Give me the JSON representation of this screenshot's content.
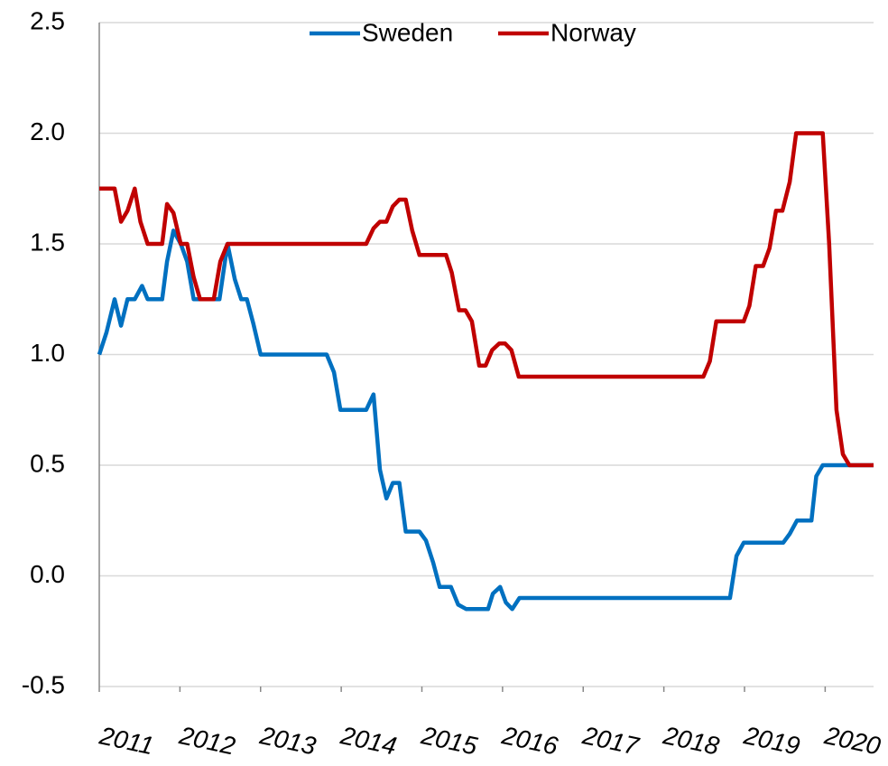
{
  "chart_data": {
    "type": "line",
    "xlim": [
      2011,
      2020.6
    ],
    "xticks": [
      2011,
      2012,
      2013,
      2014,
      2015,
      2016,
      2017,
      2018,
      2019,
      2020
    ],
    "ylim": [
      -0.5,
      2.5
    ],
    "yticks": [
      -0.5,
      {
        "value": 0,
        "label": "0.0"
      },
      0.5,
      {
        "value": 1,
        "label": "1.0"
      },
      1.5,
      {
        "value": 2,
        "label": "2.0"
      },
      2.5
    ],
    "grid": true,
    "legend": "top",
    "series": [
      {
        "name": "Sweden",
        "color": "#0070c0",
        "x": [
          2011.0,
          2011.09,
          2011.19,
          2011.27,
          2011.35,
          2011.44,
          2011.53,
          2011.6,
          2011.78,
          2011.84,
          2011.92,
          2012.01,
          2012.09,
          2012.17,
          2012.49,
          2012.59,
          2012.68,
          2012.76,
          2012.83,
          2012.91,
          2013.0,
          2013.82,
          2013.91,
          2013.99,
          2014.31,
          2014.4,
          2014.48,
          2014.56,
          2014.64,
          2014.72,
          2014.8,
          2014.97,
          2015.05,
          2015.14,
          2015.22,
          2015.36,
          2015.45,
          2015.55,
          2015.82,
          2015.88,
          2015.97,
          2016.04,
          2016.12,
          2016.21,
          2018.82,
          2018.9,
          2018.99,
          2019.48,
          2019.56,
          2019.65,
          2019.83,
          2019.89,
          2019.97,
          2020.6
        ],
        "values": [
          1.0,
          1.1,
          1.25,
          1.13,
          1.25,
          1.25,
          1.31,
          1.25,
          1.25,
          1.42,
          1.56,
          1.5,
          1.42,
          1.25,
          1.25,
          1.5,
          1.34,
          1.25,
          1.25,
          1.14,
          1.0,
          1.0,
          0.92,
          0.75,
          0.75,
          0.82,
          0.48,
          0.35,
          0.42,
          0.42,
          0.2,
          0.2,
          0.16,
          0.06,
          -0.05,
          -0.05,
          -0.13,
          -0.15,
          -0.15,
          -0.08,
          -0.05,
          -0.12,
          -0.15,
          -0.1,
          -0.1,
          0.09,
          0.15,
          0.15,
          0.19,
          0.25,
          0.25,
          0.45,
          0.5,
          0.5
        ]
      },
      {
        "name": "Norway",
        "color": "#c00000",
        "x": [
          2011.0,
          2011.19,
          2011.27,
          2011.35,
          2011.44,
          2011.51,
          2011.6,
          2011.78,
          2011.84,
          2011.92,
          2012.01,
          2012.09,
          2012.17,
          2012.25,
          2012.42,
          2012.5,
          2012.59,
          2014.31,
          2014.4,
          2014.48,
          2014.56,
          2014.64,
          2014.72,
          2014.8,
          2014.88,
          2014.97,
          2015.3,
          2015.37,
          2015.46,
          2015.54,
          2015.62,
          2015.71,
          2015.79,
          2015.87,
          2015.96,
          2016.03,
          2016.11,
          2016.2,
          2018.49,
          2018.57,
          2018.65,
          2018.99,
          2019.06,
          2019.14,
          2019.23,
          2019.31,
          2019.39,
          2019.47,
          2019.56,
          2019.64,
          2019.97,
          2020.05,
          2020.14,
          2020.22,
          2020.3,
          2020.6
        ],
        "values": [
          1.75,
          1.75,
          1.6,
          1.65,
          1.75,
          1.6,
          1.5,
          1.5,
          1.68,
          1.64,
          1.5,
          1.5,
          1.35,
          1.25,
          1.25,
          1.42,
          1.5,
          1.5,
          1.57,
          1.6,
          1.6,
          1.67,
          1.7,
          1.7,
          1.56,
          1.45,
          1.45,
          1.37,
          1.2,
          1.2,
          1.15,
          0.95,
          0.95,
          1.02,
          1.05,
          1.05,
          1.02,
          0.9,
          0.9,
          0.97,
          1.15,
          1.15,
          1.22,
          1.4,
          1.4,
          1.48,
          1.65,
          1.65,
          1.78,
          2.0,
          2.0,
          1.5,
          0.75,
          0.55,
          0.5,
          0.5
        ]
      }
    ]
  }
}
